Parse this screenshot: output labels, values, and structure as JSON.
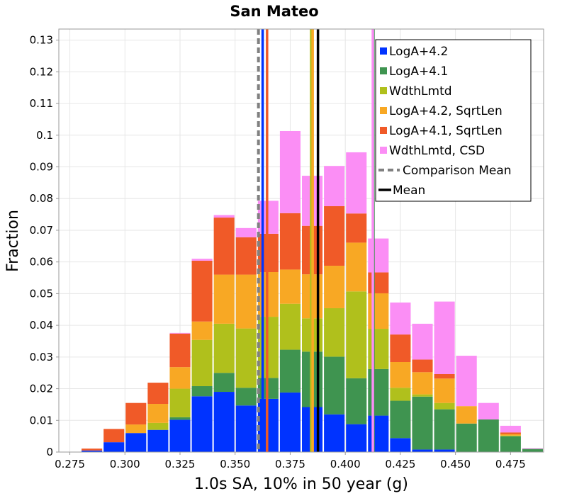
{
  "chart_data": {
    "type": "bar",
    "stacked": true,
    "title": "San Mateo",
    "xlabel": "1.0s SA, 10% in 50 year (g)",
    "ylabel": "Fraction",
    "xlim": [
      0.27,
      0.49
    ],
    "ylim": [
      0,
      0.1335
    ],
    "bin_width": 0.01,
    "x_ticks": [
      "0.275",
      "0.300",
      "0.325",
      "0.350",
      "0.375",
      "0.400",
      "0.425",
      "0.450",
      "0.475"
    ],
    "x_tick_values": [
      0.275,
      0.3,
      0.325,
      0.35,
      0.375,
      0.4,
      0.425,
      0.45,
      0.475
    ],
    "y_ticks": [
      "0",
      "0.01",
      "0.02",
      "0.03",
      "0.04",
      "0.05",
      "0.06",
      "0.07",
      "0.08",
      "0.09",
      "0.1",
      "0.11",
      "0.12",
      "0.13"
    ],
    "y_tick_values": [
      0,
      0.01,
      0.02,
      0.03,
      0.04,
      0.05,
      0.06,
      0.07,
      0.08,
      0.09,
      0.1,
      0.11,
      0.12,
      0.13
    ],
    "bin_centers": [
      0.275,
      0.285,
      0.295,
      0.305,
      0.315,
      0.325,
      0.335,
      0.345,
      0.355,
      0.365,
      0.375,
      0.385,
      0.395,
      0.405,
      0.415,
      0.425,
      0.435,
      0.445,
      0.455,
      0.465,
      0.475,
      0.485
    ],
    "series": [
      {
        "name": "LogA+4.2",
        "color": "#0033ff",
        "values": [
          0.0001,
          0.0005,
          0.0031,
          0.006,
          0.007,
          0.0102,
          0.0176,
          0.019,
          0.0147,
          0.0168,
          0.0188,
          0.0142,
          0.0119,
          0.0088,
          0.0115,
          0.0044,
          0.0008,
          0.0008,
          0,
          0,
          0,
          0
        ]
      },
      {
        "name": "LogA+4.1",
        "color": "#3f9450",
        "values": [
          0,
          0,
          0,
          0,
          0,
          0.0008,
          0.0032,
          0.006,
          0.0056,
          0.0066,
          0.0135,
          0.0175,
          0.0182,
          0.0145,
          0.0147,
          0.0118,
          0.0167,
          0.0127,
          0.009,
          0.0103,
          0.005,
          0.001
        ]
      },
      {
        "name": "WdthLmtd",
        "color": "#b0c01c",
        "values": [
          0,
          0,
          0,
          0,
          0.0022,
          0.009,
          0.0146,
          0.0155,
          0.0187,
          0.0193,
          0.0145,
          0.0105,
          0.0153,
          0.0274,
          0.0127,
          0.0041,
          0.0007,
          0.002,
          0,
          0,
          0.0002,
          0
        ]
      },
      {
        "name": "LogA+4.2, SqrtLen",
        "color": "#f8a824",
        "values": [
          0,
          0,
          0,
          0.0027,
          0.006,
          0.0068,
          0.0058,
          0.0155,
          0.017,
          0.0141,
          0.0108,
          0.0139,
          0.0134,
          0.0154,
          0.0112,
          0.0081,
          0.007,
          0.0077,
          0.0055,
          0,
          0.0005,
          0
        ]
      },
      {
        "name": "LogA+4.1, SqrtLen",
        "color": "#f05a28",
        "values": [
          0,
          0.0006,
          0.0042,
          0.0068,
          0.0067,
          0.0106,
          0.0192,
          0.018,
          0.0118,
          0.0121,
          0.0178,
          0.0153,
          0.0188,
          0.0092,
          0.0066,
          0.0087,
          0.004,
          0.0014,
          0,
          0,
          0.0005,
          0
        ]
      },
      {
        "name": "WdthLmtd, CSD",
        "color": "#fb8ef5",
        "values": [
          0,
          0,
          0,
          0,
          0,
          0.0002,
          0.0006,
          0.0008,
          0.0029,
          0.0104,
          0.0259,
          0.0158,
          0.0127,
          0.0193,
          0.0107,
          0.0101,
          0.0113,
          0.0229,
          0.0159,
          0.0052,
          0.0021,
          0.0002
        ]
      }
    ],
    "vertical_lines": [
      {
        "series": "LogA+4.2",
        "x": 0.3625,
        "color": "#0033ff",
        "style": "solid"
      },
      {
        "series": "LogA+4.1",
        "x": 0.4128,
        "color": "#3f9450",
        "style": "solid"
      },
      {
        "series": "WdthLmtd",
        "x": 0.3845,
        "color": "#b0c01c",
        "style": "solid"
      },
      {
        "series": "LogA+4.2, SqrtLen",
        "x": 0.3852,
        "color": "#f8a824",
        "style": "solid"
      },
      {
        "series": "LogA+4.1, SqrtLen",
        "x": 0.3645,
        "color": "#f05a28",
        "style": "solid"
      },
      {
        "series": "WdthLmtd, CSD",
        "x": 0.4125,
        "color": "#fb8ef5",
        "style": "solid"
      },
      {
        "series": "Comparison Mean",
        "x": 0.3606,
        "color": "#808080",
        "style": "dashed"
      },
      {
        "series": "Mean",
        "x": 0.3876,
        "color": "#000000",
        "style": "solid"
      }
    ],
    "legend": {
      "placement": "top-right",
      "entries": [
        {
          "label": "LogA+4.2",
          "color": "#0033ff",
          "marker": "square"
        },
        {
          "label": "LogA+4.1",
          "color": "#3f9450",
          "marker": "square"
        },
        {
          "label": "WdthLmtd",
          "color": "#b0c01c",
          "marker": "square"
        },
        {
          "label": "LogA+4.2, SqrtLen",
          "color": "#f8a824",
          "marker": "square"
        },
        {
          "label": "LogA+4.1, SqrtLen",
          "color": "#f05a28",
          "marker": "square"
        },
        {
          "label": "WdthLmtd, CSD",
          "color": "#fb8ef5",
          "marker": "square"
        },
        {
          "label": "Comparison Mean",
          "color": "#808080",
          "marker": "dashed-line"
        },
        {
          "label": "Mean",
          "color": "#000000",
          "marker": "line"
        }
      ]
    },
    "grid": true
  }
}
